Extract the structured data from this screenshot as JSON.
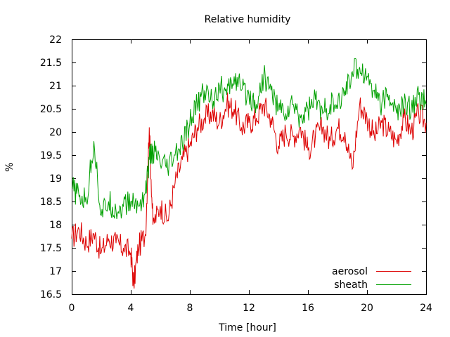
{
  "chart_data": {
    "type": "line",
    "title": "Relative humidity",
    "xlabel": "Time [hour]",
    "ylabel": "%",
    "xlim": [
      0,
      24
    ],
    "ylim": [
      16.5,
      22
    ],
    "xticks": [
      0,
      4,
      8,
      12,
      16,
      20,
      24
    ],
    "xtick_labels": [
      "0",
      "4",
      "8",
      "12",
      "16",
      "20",
      "24"
    ],
    "yticks": [
      16.5,
      17,
      17.5,
      18,
      18.5,
      19,
      19.5,
      20,
      20.5,
      21,
      21.5,
      22
    ],
    "ytick_labels": [
      "16.5",
      "17",
      "17.5",
      "18",
      "18.5",
      "19",
      "19.5",
      "20",
      "20.5",
      "21",
      "21.5",
      "22"
    ],
    "grid": false,
    "legend": "bottom-right",
    "series": [
      {
        "name": "aerosol",
        "color": "#dd0000",
        "x": [
          0,
          0.5,
          1,
          1.5,
          2,
          2.5,
          3,
          3.5,
          4,
          4.2,
          4.5,
          5,
          5.25,
          5.5,
          6,
          6.5,
          7,
          7.5,
          8,
          8.5,
          9,
          9.5,
          10,
          10.5,
          11,
          11.5,
          12,
          12.5,
          13,
          13.5,
          14,
          14.5,
          15,
          15.5,
          16,
          16.5,
          17,
          17.5,
          18,
          18.5,
          19,
          19.5,
          20,
          20.5,
          21,
          21.5,
          22,
          22.5,
          23,
          23.5,
          24
        ],
        "y": [
          17.7,
          17.9,
          17.6,
          17.8,
          17.4,
          17.7,
          17.6,
          17.5,
          17.4,
          16.7,
          17.5,
          17.8,
          20.1,
          18.0,
          18.4,
          18.1,
          18.9,
          19.4,
          19.7,
          20.1,
          20.3,
          20.4,
          20.2,
          20.6,
          20.5,
          20.1,
          20.2,
          20.3,
          20.6,
          20.3,
          19.7,
          20.0,
          19.9,
          20.1,
          19.6,
          19.9,
          20.1,
          19.8,
          20.1,
          20.0,
          19.2,
          20.6,
          20.3,
          19.9,
          20.2,
          20.0,
          19.8,
          20.3,
          20.0,
          20.4,
          20.2
        ]
      },
      {
        "name": "sheath",
        "color": "#00a000",
        "x": [
          0,
          0.5,
          1,
          1.5,
          2,
          2.5,
          3,
          3.5,
          4,
          4.5,
          5,
          5.25,
          5.5,
          6,
          6.5,
          7,
          7.5,
          8,
          8.5,
          9,
          9.5,
          10,
          10.5,
          11,
          11.5,
          12,
          12.5,
          13,
          13.5,
          14,
          14.5,
          15,
          15.5,
          16,
          16.5,
          17,
          17.5,
          18,
          18.5,
          19,
          19.5,
          20,
          20.5,
          21,
          21.5,
          22,
          22.5,
          23,
          23.5,
          24
        ],
        "y": [
          18.8,
          18.6,
          18.5,
          19.8,
          18.2,
          18.5,
          18.3,
          18.4,
          18.5,
          18.4,
          18.7,
          19.4,
          19.6,
          19.3,
          19.2,
          19.5,
          19.7,
          20.2,
          20.6,
          20.9,
          20.7,
          21.0,
          20.8,
          21.2,
          20.9,
          20.8,
          20.6,
          21.2,
          20.9,
          20.5,
          20.4,
          20.6,
          20.3,
          20.5,
          20.7,
          20.4,
          20.6,
          20.5,
          20.9,
          21.3,
          21.4,
          21.2,
          20.9,
          20.6,
          20.8,
          20.4,
          20.6,
          20.5,
          20.8,
          20.6
        ]
      }
    ]
  }
}
